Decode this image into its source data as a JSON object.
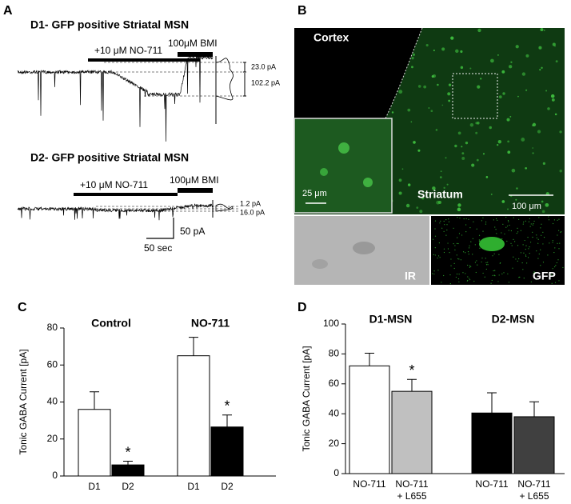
{
  "panel_a": {
    "letter": "A",
    "d1": {
      "title": "D1- GFP positive Striatal MSN",
      "drug": "+10 μM NO-711",
      "blocker": "100μM BMI",
      "amp1": "23.0 pA",
      "amp2": "102.2 pA"
    },
    "d2": {
      "title": "D2- GFP positive Striatal MSN",
      "drug": "+10 μM NO-711",
      "blocker": "100μM BMI",
      "amp1": "1.2 pA",
      "amp2": "16.0 pA"
    },
    "scale_y": "50 pA",
    "scale_x": "50 sec"
  },
  "panel_b": {
    "letter": "B",
    "cortex": "Cortex",
    "striatum": "Striatum",
    "inset_scale": "25 μm",
    "scale": "100 μm",
    "ir": "IR",
    "gfp": "GFP"
  },
  "chart_data": [
    {
      "type": "bar",
      "letter": "C",
      "ylabel": "Tonic GABA Current [pA]",
      "ylim": [
        0,
        80
      ],
      "yticks": [
        0,
        20,
        40,
        60,
        80
      ],
      "asterisk": "*",
      "groups": [
        {
          "name": "Control",
          "categories": [
            [
              "D1"
            ],
            [
              "D2"
            ]
          ],
          "values": [
            36,
            6
          ],
          "errors": [
            9.5,
            2
          ],
          "colors": [
            "#ffffff",
            "#000000"
          ],
          "significant": [
            false,
            true
          ]
        },
        {
          "name": "NO-711",
          "categories": [
            [
              "D1"
            ],
            [
              "D2"
            ]
          ],
          "values": [
            65,
            26.5
          ],
          "errors": [
            10,
            6.5
          ],
          "colors": [
            "#ffffff",
            "#000000"
          ],
          "significant": [
            false,
            true
          ]
        }
      ]
    },
    {
      "type": "bar",
      "letter": "D",
      "ylabel": "Tonic GABA Current [pA]",
      "ylim": [
        0,
        100
      ],
      "yticks": [
        0,
        20,
        40,
        60,
        80,
        100
      ],
      "asterisk": "*",
      "groups": [
        {
          "name": "D1-MSN",
          "categories": [
            [
              "NO-711"
            ],
            [
              "NO-711",
              "+ L655"
            ]
          ],
          "values": [
            72,
            55
          ],
          "errors": [
            8.5,
            8
          ],
          "colors": [
            "#ffffff",
            "#c0c0c0"
          ],
          "significant": [
            false,
            true
          ]
        },
        {
          "name": "D2-MSN",
          "categories": [
            [
              "NO-711"
            ],
            [
              "NO-711",
              "+ L655"
            ]
          ],
          "values": [
            40.5,
            38
          ],
          "errors": [
            13.5,
            10
          ],
          "colors": [
            "#000000",
            "#404040"
          ],
          "significant": [
            false,
            false
          ]
        }
      ]
    }
  ]
}
